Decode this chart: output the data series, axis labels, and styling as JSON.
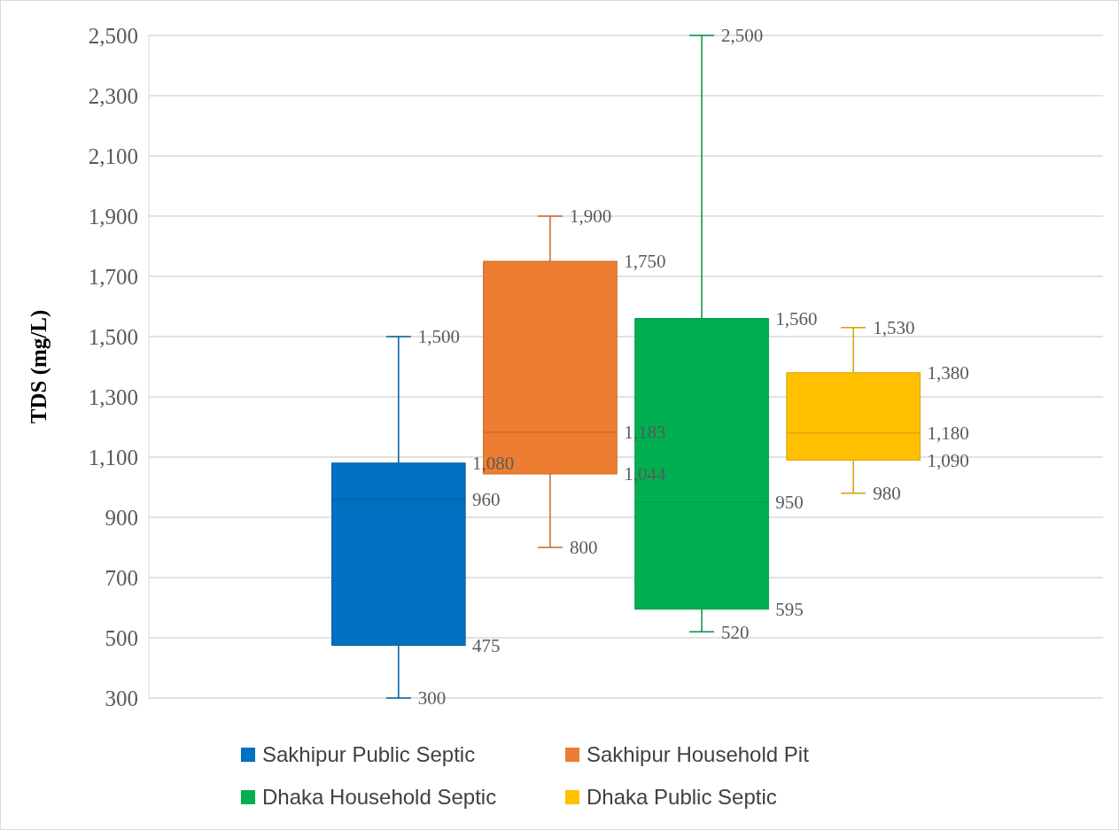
{
  "chart_data": {
    "type": "box",
    "ylabel": "TDS (mg/L)",
    "categories": [
      null
    ],
    "ylim": [
      300,
      2500
    ],
    "yticks": [
      300,
      500,
      700,
      900,
      {
        "value": 1100,
        "label": "1,100"
      },
      {
        "value": 1300,
        "label": "1,300"
      },
      {
        "value": 1500,
        "label": "1,500"
      },
      {
        "value": 1700,
        "label": "1,700"
      },
      {
        "value": 1900,
        "label": "1,900"
      },
      {
        "value": 2100,
        "label": "2,100"
      },
      {
        "value": 2300,
        "label": "2,300"
      },
      {
        "value": 2500,
        "label": "2,500"
      }
    ],
    "grid": "y",
    "legend": "bottom",
    "series": [
      {
        "name": "Sakhipur Public Septic",
        "color": "#0070c0",
        "boxes": [
          {
            "low": 300,
            "q1": 475,
            "median": 960,
            "q3": 1080,
            "high": 1500
          }
        ]
      },
      {
        "name": "Sakhipur Household Pit",
        "color": "#ed7d31",
        "boxes": [
          {
            "low": 800,
            "q1": 1044,
            "median": 1183,
            "q3": 1750,
            "high": 1900
          }
        ]
      },
      {
        "name": "Dhaka Household Septic",
        "color": "#00b050",
        "boxes": [
          {
            "low": 520,
            "q1": 595,
            "median": 950,
            "q3": 1560,
            "high": 2500
          }
        ]
      },
      {
        "name": "Dhaka Public Septic",
        "color": "#ffc000",
        "boxes": [
          {
            "low": 980,
            "q1": 1090,
            "median": 1180,
            "q3": 1380,
            "high": 1530
          }
        ]
      }
    ],
    "annotations": [
      "300",
      "475",
      "960",
      "1,080",
      "1,500",
      "800",
      "1,044",
      "1,183",
      "1,750",
      "1,900",
      "520",
      "595",
      "950",
      "1,560",
      "2,500",
      "980",
      "1,090",
      "1,180",
      "1,380",
      "1,530"
    ]
  }
}
